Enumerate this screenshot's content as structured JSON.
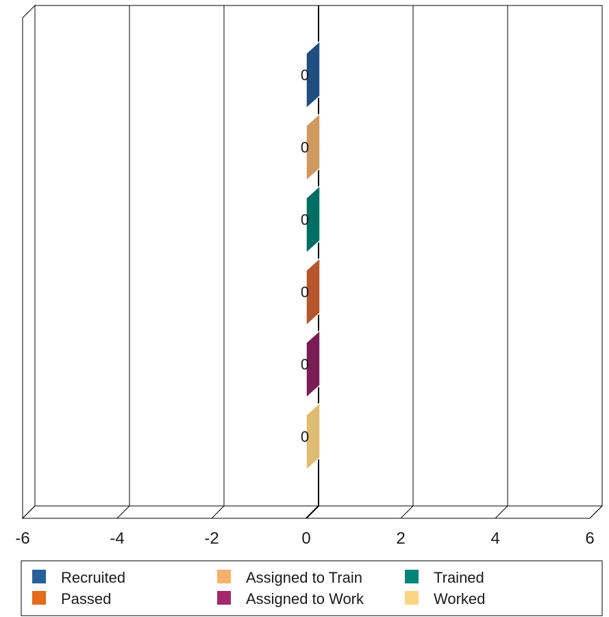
{
  "chart_data": {
    "type": "bar",
    "orientation": "horizontal",
    "style": "3d",
    "title": "",
    "xlabel": "",
    "ylabel": "",
    "xlim": [
      -6,
      6
    ],
    "x_ticks": [
      "-6",
      "-4",
      "-2",
      "0",
      "2",
      "4",
      "6"
    ],
    "grid": true,
    "legend_position": "bottom",
    "series": [
      {
        "name": "Recruited",
        "value": 0,
        "data_label": "0",
        "color": "#2a6099",
        "bar_color": "#1f4e80"
      },
      {
        "name": "Assigned to Train",
        "value": 0,
        "data_label": "0",
        "color": "#f6b26b",
        "bar_color": "#cf9a5e"
      },
      {
        "name": "Trained",
        "value": 0,
        "data_label": "0",
        "color": "#00857a",
        "bar_color": "#006e64"
      },
      {
        "name": "Passed",
        "value": 0,
        "data_label": "0",
        "color": "#e36c1d",
        "bar_color": "#b7562c"
      },
      {
        "name": "Assigned to Work",
        "value": 0,
        "data_label": "0",
        "color": "#a4286a",
        "bar_color": "#7a1d57"
      },
      {
        "name": "Worked",
        "value": 0,
        "data_label": "0",
        "color": "#fcd582",
        "bar_color": "#e0bc72"
      }
    ]
  }
}
